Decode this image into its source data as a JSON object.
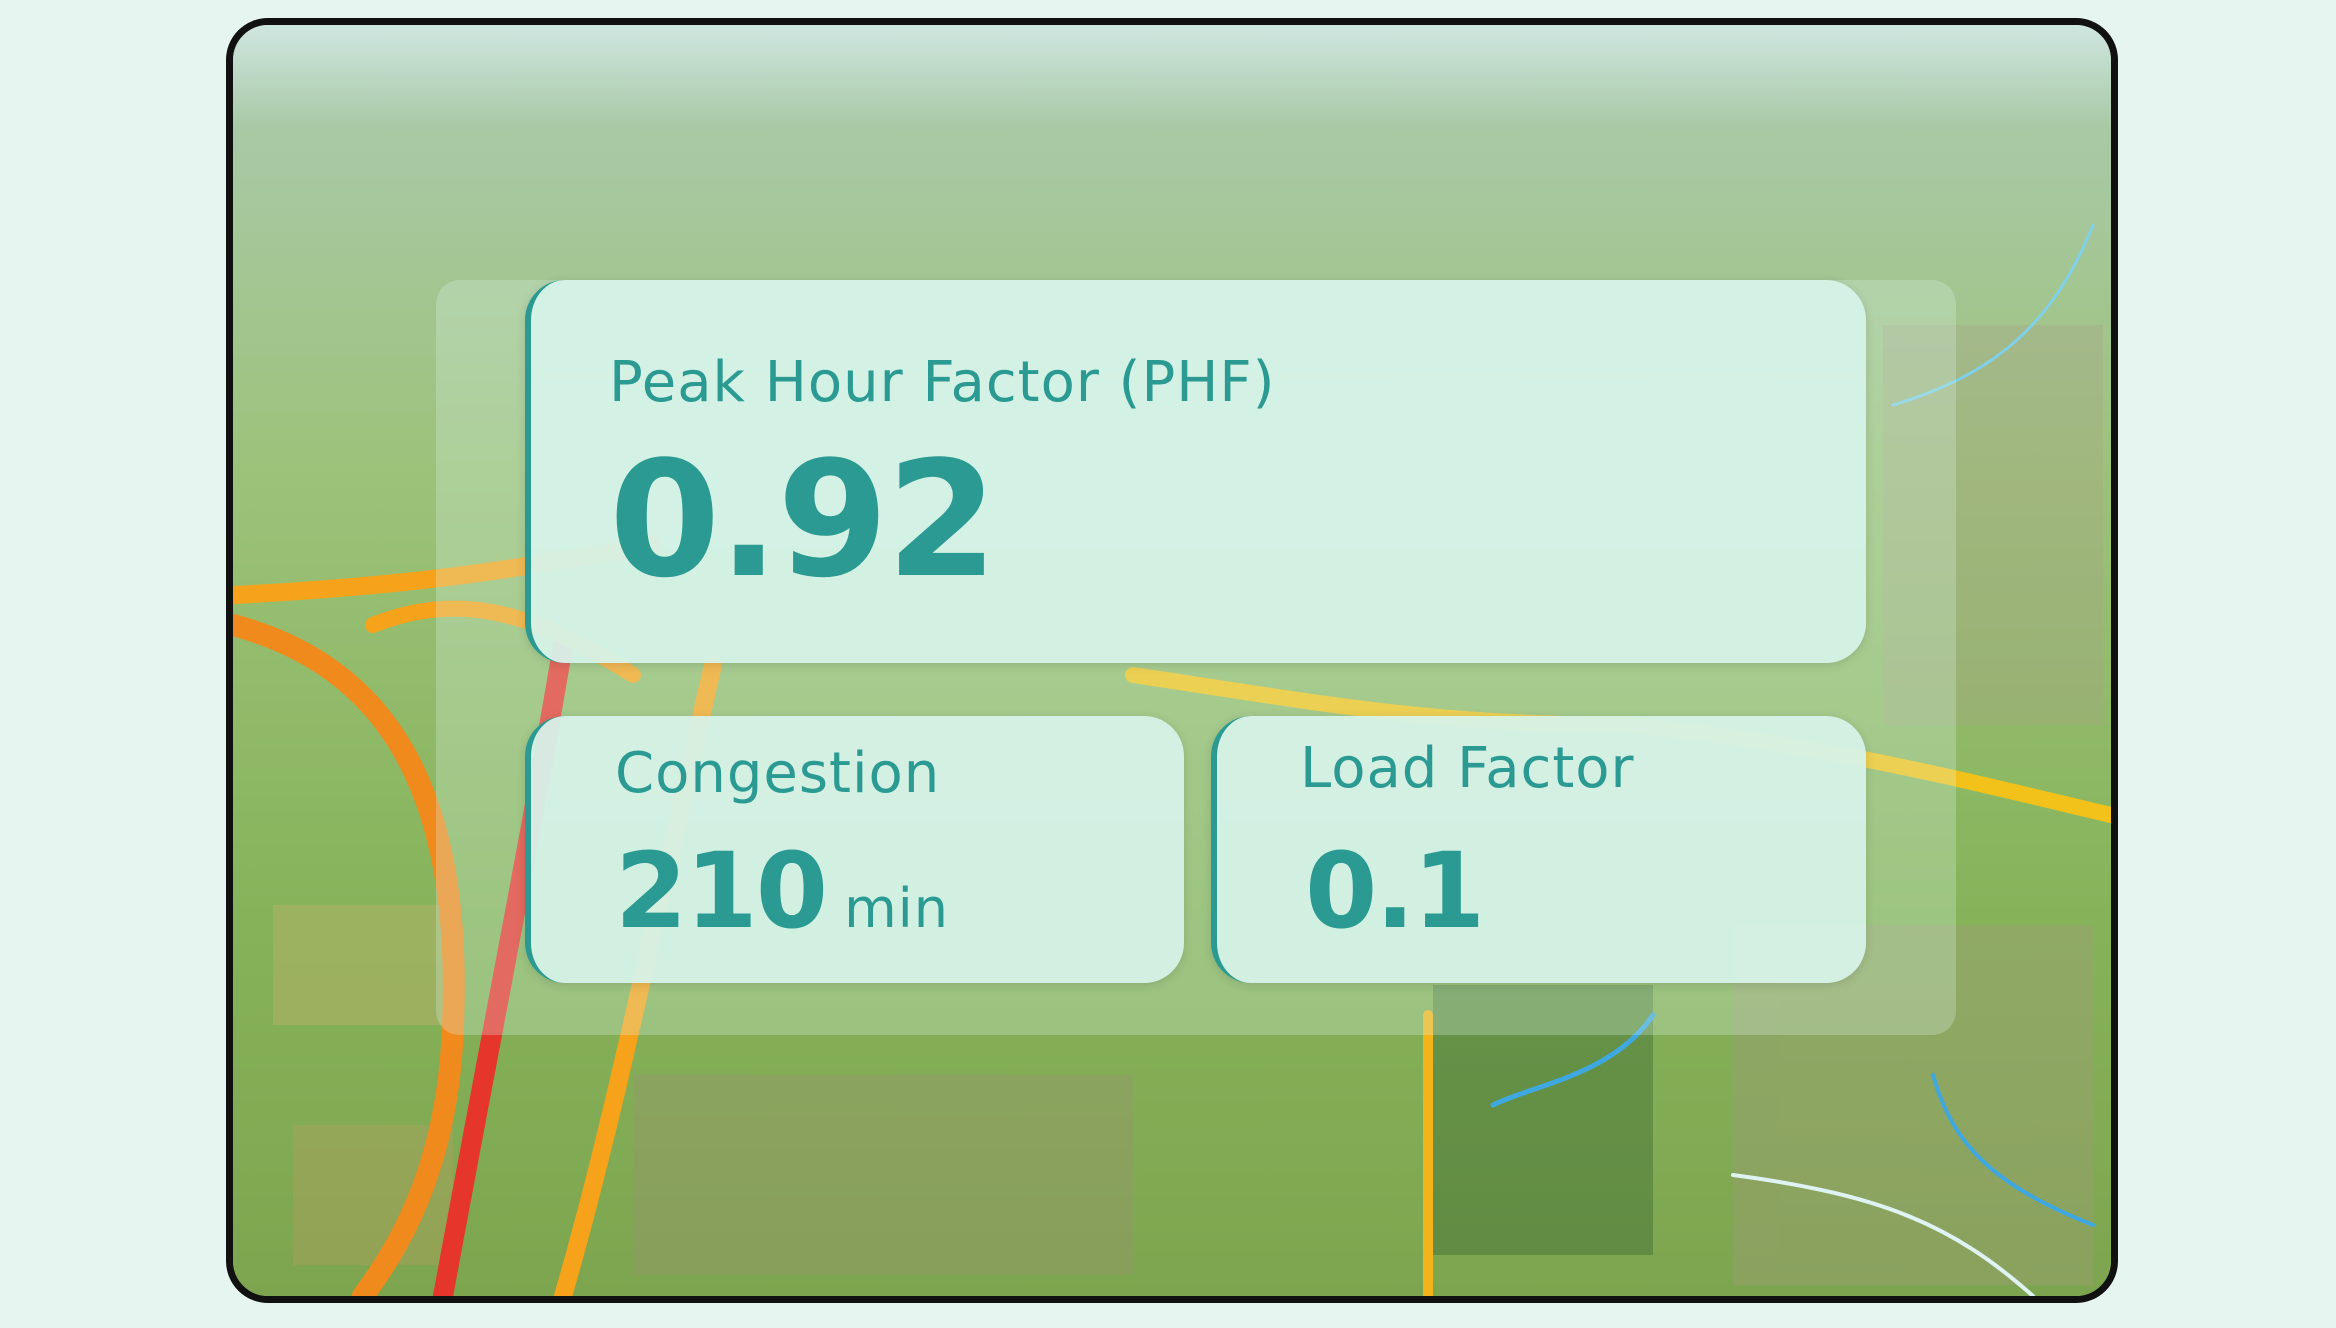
{
  "colors": {
    "accent": "#2a9a92",
    "card_bg": "#d6f3ea",
    "page_bg": "#e7f5f0"
  },
  "metrics": {
    "phf": {
      "label": "Peak Hour Factor (PHF)",
      "value": "0.92"
    },
    "congestion": {
      "label": "Congestion",
      "value": "210",
      "unit": "min"
    },
    "load_factor": {
      "label": "Load Factor",
      "value": "0.1"
    }
  }
}
